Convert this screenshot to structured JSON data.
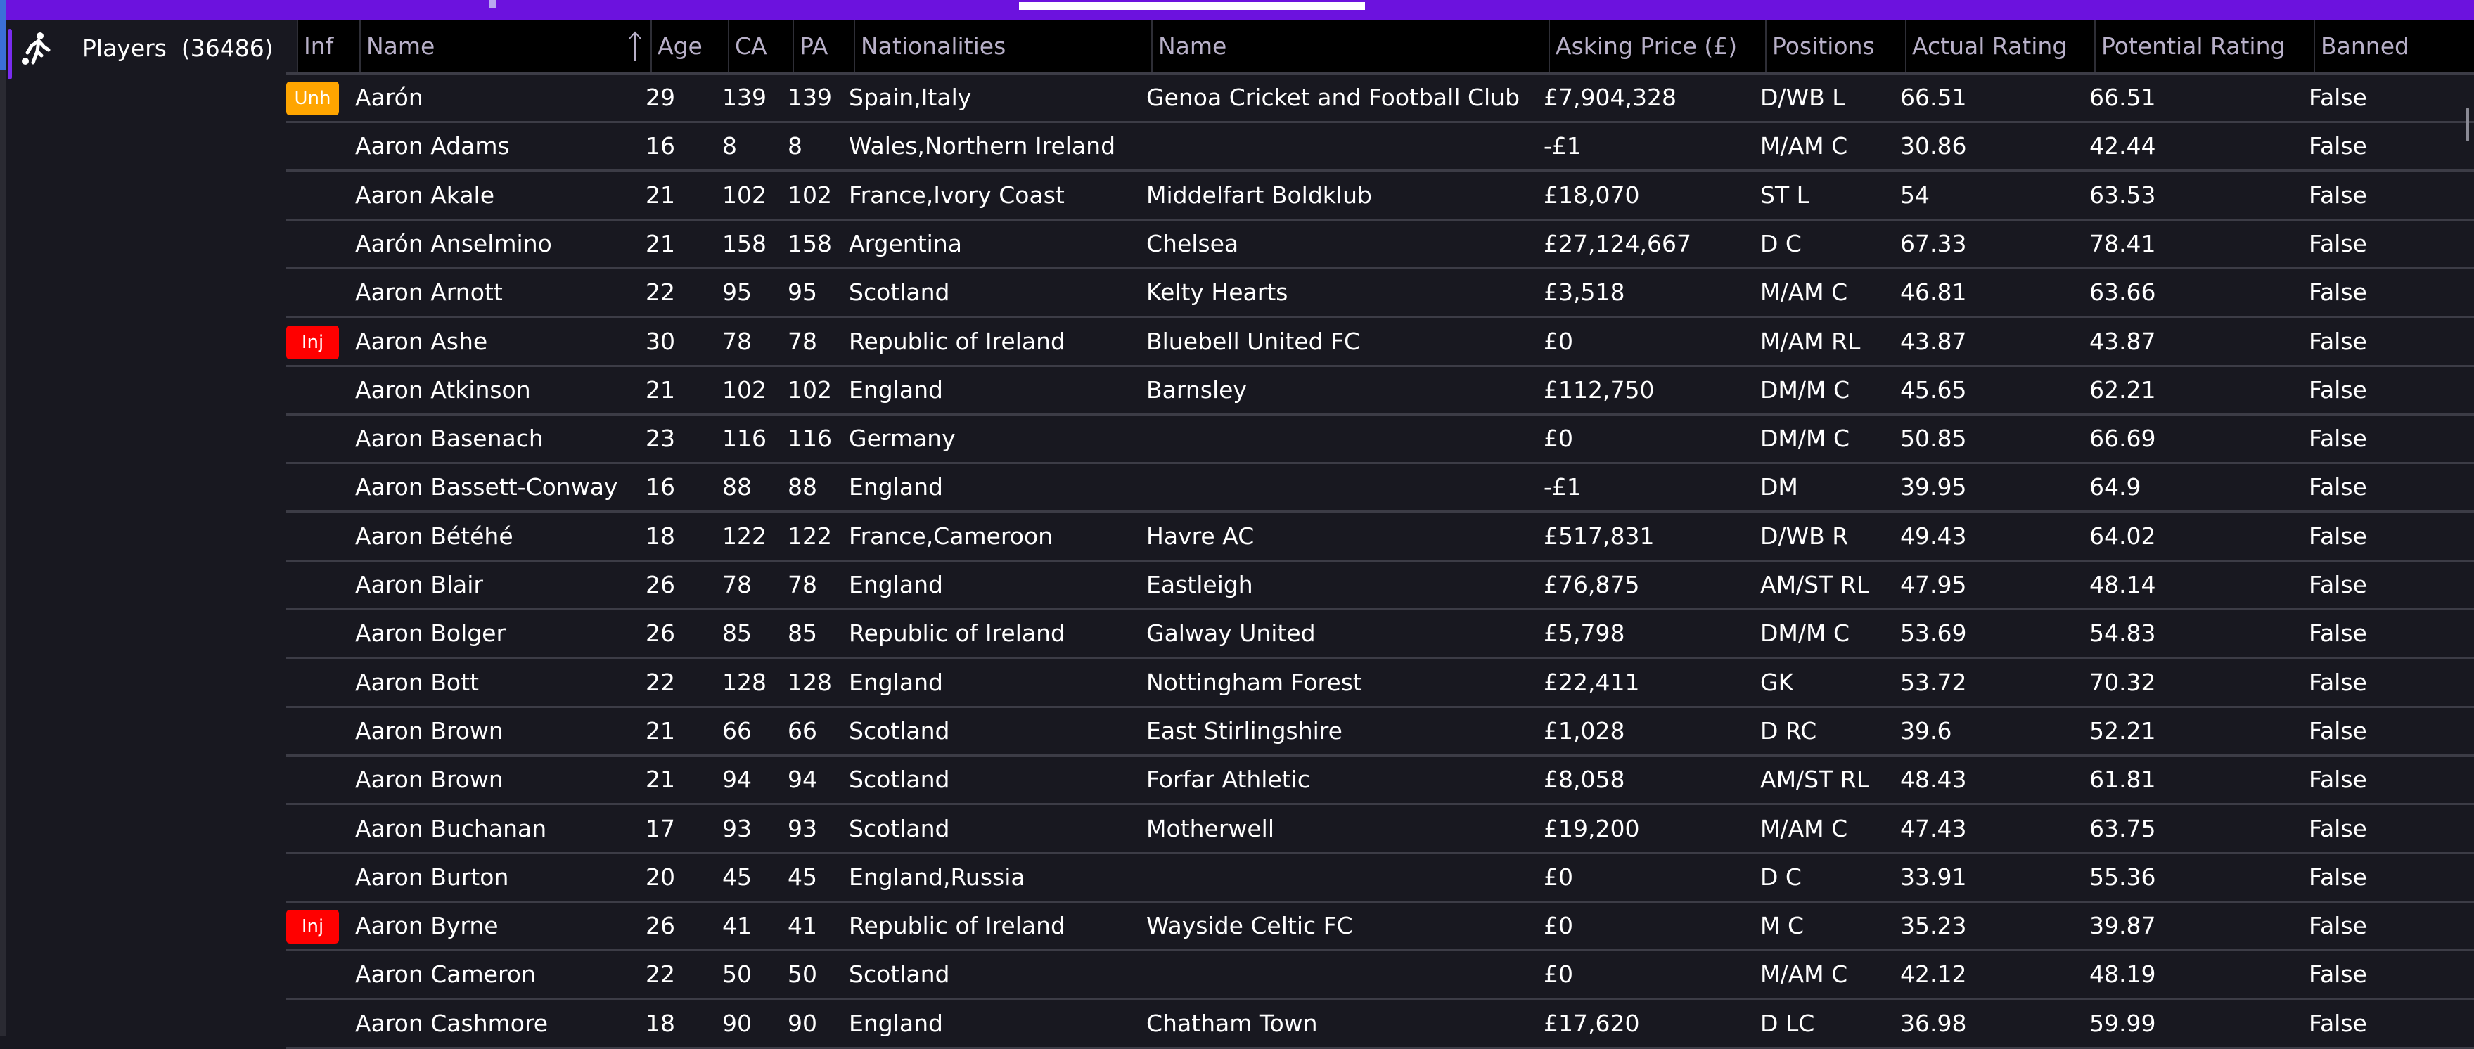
{
  "sidebar": {
    "items": [
      {
        "label": "Players  (36486)",
        "icon": "football-player-icon",
        "active": true
      }
    ]
  },
  "colors": {
    "topbar": "#6c12de",
    "unhappy_badge": "#ffa500",
    "injured_badge": "#ff0000",
    "row_bg": "#181820",
    "header_bg": "#000000"
  },
  "table": {
    "sorted_column": "Name",
    "sort_direction": "ascending",
    "columns": [
      "Inf",
      "Name",
      "Age",
      "CA",
      "PA",
      "Nationalities",
      "Name",
      "Asking Price (£)",
      "Positions",
      "Actual Rating",
      "Potential Rating",
      "Banned"
    ],
    "rows": [
      {
        "inf": "Unh",
        "name": "Aarón",
        "age": "29",
        "ca": "139",
        "pa": "139",
        "nat": "Spain,Italy",
        "club": "Genoa Cricket and Football Club",
        "price": "£7,904,328",
        "pos": "D/WB L",
        "actual": "66.51",
        "potential": "66.51",
        "banned": "False"
      },
      {
        "inf": "",
        "name": "Aaron Adams",
        "age": "16",
        "ca": "8",
        "pa": "8",
        "nat": "Wales,Northern Ireland",
        "club": "",
        "price": "-£1",
        "pos": "M/AM C",
        "actual": "30.86",
        "potential": "42.44",
        "banned": "False"
      },
      {
        "inf": "",
        "name": "Aaron Akale",
        "age": "21",
        "ca": "102",
        "pa": "102",
        "nat": "France,Ivory Coast",
        "club": "Middelfart Boldklub",
        "price": "£18,070",
        "pos": "ST L",
        "actual": "54",
        "potential": "63.53",
        "banned": "False"
      },
      {
        "inf": "",
        "name": "Aarón Anselmino",
        "age": "21",
        "ca": "158",
        "pa": "158",
        "nat": "Argentina",
        "club": "Chelsea",
        "price": "£27,124,667",
        "pos": "D C",
        "actual": "67.33",
        "potential": "78.41",
        "banned": "False"
      },
      {
        "inf": "",
        "name": "Aaron Arnott",
        "age": "22",
        "ca": "95",
        "pa": "95",
        "nat": "Scotland",
        "club": "Kelty Hearts",
        "price": "£3,518",
        "pos": "M/AM C",
        "actual": "46.81",
        "potential": "63.66",
        "banned": "False"
      },
      {
        "inf": "Inj",
        "name": "Aaron Ashe",
        "age": "30",
        "ca": "78",
        "pa": "78",
        "nat": "Republic of Ireland",
        "club": "Bluebell United FC",
        "price": "£0",
        "pos": "M/AM RL",
        "actual": "43.87",
        "potential": "43.87",
        "banned": "False"
      },
      {
        "inf": "",
        "name": "Aaron Atkinson",
        "age": "21",
        "ca": "102",
        "pa": "102",
        "nat": "England",
        "club": "Barnsley",
        "price": "£112,750",
        "pos": "DM/M C",
        "actual": "45.65",
        "potential": "62.21",
        "banned": "False"
      },
      {
        "inf": "",
        "name": "Aaron Basenach",
        "age": "23",
        "ca": "116",
        "pa": "116",
        "nat": "Germany",
        "club": "",
        "price": "£0",
        "pos": "DM/M C",
        "actual": "50.85",
        "potential": "66.69",
        "banned": "False"
      },
      {
        "inf": "",
        "name": "Aaron Bassett-Conway",
        "age": "16",
        "ca": "88",
        "pa": "88",
        "nat": "England",
        "club": "",
        "price": "-£1",
        "pos": "DM",
        "actual": "39.95",
        "potential": "64.9",
        "banned": "False"
      },
      {
        "inf": "",
        "name": "Aaron Bétéhé",
        "age": "18",
        "ca": "122",
        "pa": "122",
        "nat": "France,Cameroon",
        "club": "Havre AC",
        "price": "£517,831",
        "pos": "D/WB R",
        "actual": "49.43",
        "potential": "64.02",
        "banned": "False"
      },
      {
        "inf": "",
        "name": "Aaron Blair",
        "age": "26",
        "ca": "78",
        "pa": "78",
        "nat": "England",
        "club": "Eastleigh",
        "price": "£76,875",
        "pos": "AM/ST RL",
        "actual": "47.95",
        "potential": "48.14",
        "banned": "False"
      },
      {
        "inf": "",
        "name": "Aaron Bolger",
        "age": "26",
        "ca": "85",
        "pa": "85",
        "nat": "Republic of Ireland",
        "club": "Galway United",
        "price": "£5,798",
        "pos": "DM/M C",
        "actual": "53.69",
        "potential": "54.83",
        "banned": "False"
      },
      {
        "inf": "",
        "name": "Aaron Bott",
        "age": "22",
        "ca": "128",
        "pa": "128",
        "nat": "England",
        "club": "Nottingham Forest",
        "price": "£22,411",
        "pos": "GK",
        "actual": "53.72",
        "potential": "70.32",
        "banned": "False"
      },
      {
        "inf": "",
        "name": "Aaron Brown",
        "age": "21",
        "ca": "66",
        "pa": "66",
        "nat": "Scotland",
        "club": "East Stirlingshire",
        "price": "£1,028",
        "pos": "D RC",
        "actual": "39.6",
        "potential": "52.21",
        "banned": "False"
      },
      {
        "inf": "",
        "name": "Aaron Brown",
        "age": "21",
        "ca": "94",
        "pa": "94",
        "nat": "Scotland",
        "club": "Forfar Athletic",
        "price": "£8,058",
        "pos": "AM/ST RL",
        "actual": "48.43",
        "potential": "61.81",
        "banned": "False"
      },
      {
        "inf": "",
        "name": "Aaron Buchanan",
        "age": "17",
        "ca": "93",
        "pa": "93",
        "nat": "Scotland",
        "club": "Motherwell",
        "price": "£19,200",
        "pos": "M/AM C",
        "actual": "47.43",
        "potential": "63.75",
        "banned": "False"
      },
      {
        "inf": "",
        "name": "Aaron Burton",
        "age": "20",
        "ca": "45",
        "pa": "45",
        "nat": "England,Russia",
        "club": "",
        "price": "£0",
        "pos": "D C",
        "actual": "33.91",
        "potential": "55.36",
        "banned": "False"
      },
      {
        "inf": "Inj",
        "name": "Aaron Byrne",
        "age": "26",
        "ca": "41",
        "pa": "41",
        "nat": "Republic of Ireland",
        "club": "Wayside Celtic FC",
        "price": "£0",
        "pos": "M C",
        "actual": "35.23",
        "potential": "39.87",
        "banned": "False"
      },
      {
        "inf": "",
        "name": "Aaron Cameron",
        "age": "22",
        "ca": "50",
        "pa": "50",
        "nat": "Scotland",
        "club": "",
        "price": "£0",
        "pos": "M/AM C",
        "actual": "42.12",
        "potential": "48.19",
        "banned": "False"
      },
      {
        "inf": "",
        "name": "Aaron Cashmore",
        "age": "18",
        "ca": "90",
        "pa": "90",
        "nat": "England",
        "club": "Chatham Town",
        "price": "£17,620",
        "pos": "D LC",
        "actual": "36.98",
        "potential": "59.99",
        "banned": "False"
      }
    ]
  }
}
